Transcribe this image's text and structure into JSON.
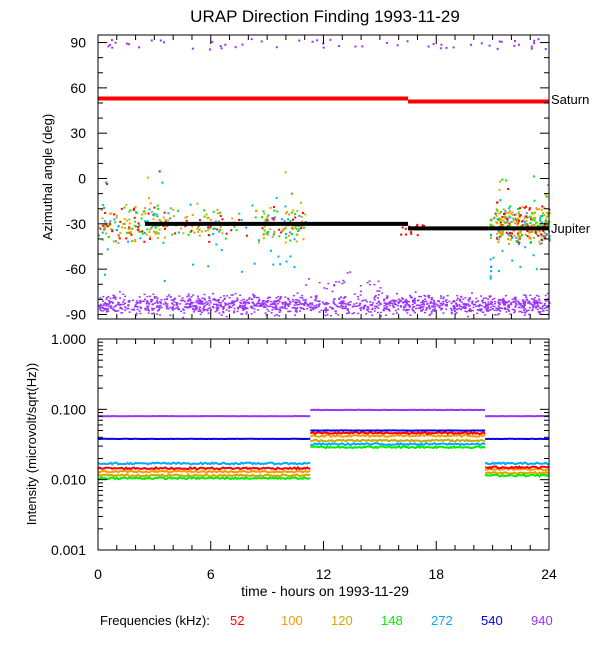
{
  "chart_data": [
    {
      "type": "scatter",
      "title": "URAP Direction Finding  1993-11-29",
      "ylabel": "Azimuthal angle (deg)",
      "xlabel": "",
      "xlim": [
        0,
        24
      ],
      "ylim": [
        -93,
        95
      ],
      "yticks": [
        "90",
        "60",
        "30",
        "0",
        "-30",
        "-60",
        "-90"
      ],
      "ytick_values": [
        90,
        60,
        30,
        0,
        -30,
        -60,
        -90
      ],
      "annotations": [
        {
          "label": "Saturn",
          "value": 52
        },
        {
          "label": "Jupiter",
          "value": -32
        }
      ],
      "series": [
        {
          "name": "Saturn direction",
          "color": "#ff0000",
          "segments": [
            {
              "x": [
                0,
                16.5
              ],
              "y": [
                53,
                53
              ]
            },
            {
              "x": [
                16.5,
                24
              ],
              "y": [
                51,
                51
              ]
            }
          ]
        },
        {
          "name": "Jupiter direction",
          "color": "#000000",
          "segments": [
            {
              "x": [
                2.5,
                16.5
              ],
              "y": [
                -30,
                -30
              ]
            },
            {
              "x": [
                16.5,
                20.8
              ],
              "y": [
                -33,
                -33
              ]
            },
            {
              "x": [
                20.8,
                24
              ],
              "y": [
                -33,
                -33
              ]
            }
          ]
        },
        {
          "name": "Jupiter emission scatter",
          "colors": [
            "#ff0000",
            "#ff9900",
            "#ccaa00",
            "#00ee00",
            "#00aaff"
          ],
          "x_ranges": [
            [
              0,
              11
            ],
            [
              20.8,
              24
            ]
          ],
          "y_center": -30,
          "y_spread": 14
        },
        {
          "name": "940 kHz scatter",
          "color": "#9933ff",
          "x_range": [
            0,
            24
          ],
          "y_center": -83,
          "y_spread": 7
        }
      ]
    },
    {
      "type": "line",
      "ylabel": "Intensity (microvolt/sqrt(Hz))",
      "xlabel": "time - hours on 1993-11-29",
      "xlim": [
        0,
        24
      ],
      "yscale": "log",
      "ylim": [
        0.001,
        1.0
      ],
      "yticks": [
        "1.000",
        "0.100",
        "0.010",
        "0.001"
      ],
      "ytick_values": [
        1.0,
        0.1,
        0.01,
        0.001
      ],
      "xticks": [
        "0",
        "6",
        "12",
        "18",
        "24"
      ],
      "xtick_values": [
        0,
        6,
        12,
        18,
        24
      ],
      "series": [
        {
          "name": "940",
          "color": "#9933ff",
          "segments": [
            {
              "x": [
                0,
                11.3
              ],
              "y": 0.08
            },
            {
              "x": [
                11.3,
                20.6
              ],
              "y": 0.098
            },
            {
              "x": [
                20.6,
                24
              ],
              "y": 0.08
            }
          ]
        },
        {
          "name": "540",
          "color": "#0000ee",
          "segments": [
            {
              "x": [
                0,
                11.3
              ],
              "y": 0.038
            },
            {
              "x": [
                11.3,
                20.6
              ],
              "y": 0.05
            },
            {
              "x": [
                20.6,
                24
              ],
              "y": 0.038
            }
          ]
        },
        {
          "name": "272",
          "color": "#00aaff",
          "segments": [
            {
              "x": [
                0,
                11.3
              ],
              "y": 0.017
            },
            {
              "x": [
                11.3,
                20.6
              ],
              "y": 0.032
            },
            {
              "x": [
                20.6,
                24
              ],
              "y": 0.017
            }
          ]
        },
        {
          "name": "148",
          "color": "#00ee00",
          "segments": [
            {
              "x": [
                0,
                11.3
              ],
              "y": 0.0105
            },
            {
              "x": [
                11.3,
                20.6
              ],
              "y": 0.029
            },
            {
              "x": [
                20.6,
                24
              ],
              "y": 0.0115
            }
          ]
        },
        {
          "name": "120",
          "color": "#ccaa00",
          "segments": [
            {
              "x": [
                0,
                11.3
              ],
              "y": 0.0115
            },
            {
              "x": [
                11.3,
                20.6
              ],
              "y": 0.036
            },
            {
              "x": [
                20.6,
                24
              ],
              "y": 0.0125
            }
          ]
        },
        {
          "name": "100",
          "color": "#ff9900",
          "segments": [
            {
              "x": [
                0,
                11.3
              ],
              "y": 0.013
            },
            {
              "x": [
                11.3,
                20.6
              ],
              "y": 0.042
            },
            {
              "x": [
                20.6,
                24
              ],
              "y": 0.014
            }
          ]
        },
        {
          "name": "52",
          "color": "#ff0000",
          "segments": [
            {
              "x": [
                0,
                11.3
              ],
              "y": 0.0145
            },
            {
              "x": [
                11.3,
                20.6
              ],
              "y": 0.046
            },
            {
              "x": [
                20.6,
                24
              ],
              "y": 0.015
            }
          ]
        }
      ]
    }
  ],
  "legend": {
    "label": "Frequencies (kHz):",
    "items": [
      {
        "label": "52",
        "color": "#ff0000"
      },
      {
        "label": "100",
        "color": "#ff9900"
      },
      {
        "label": "120",
        "color": "#ccaa00"
      },
      {
        "label": "148",
        "color": "#00ee00"
      },
      {
        "label": "272",
        "color": "#00aaff"
      },
      {
        "label": "540",
        "color": "#0000ee"
      },
      {
        "label": "940",
        "color": "#9933ff"
      }
    ]
  }
}
